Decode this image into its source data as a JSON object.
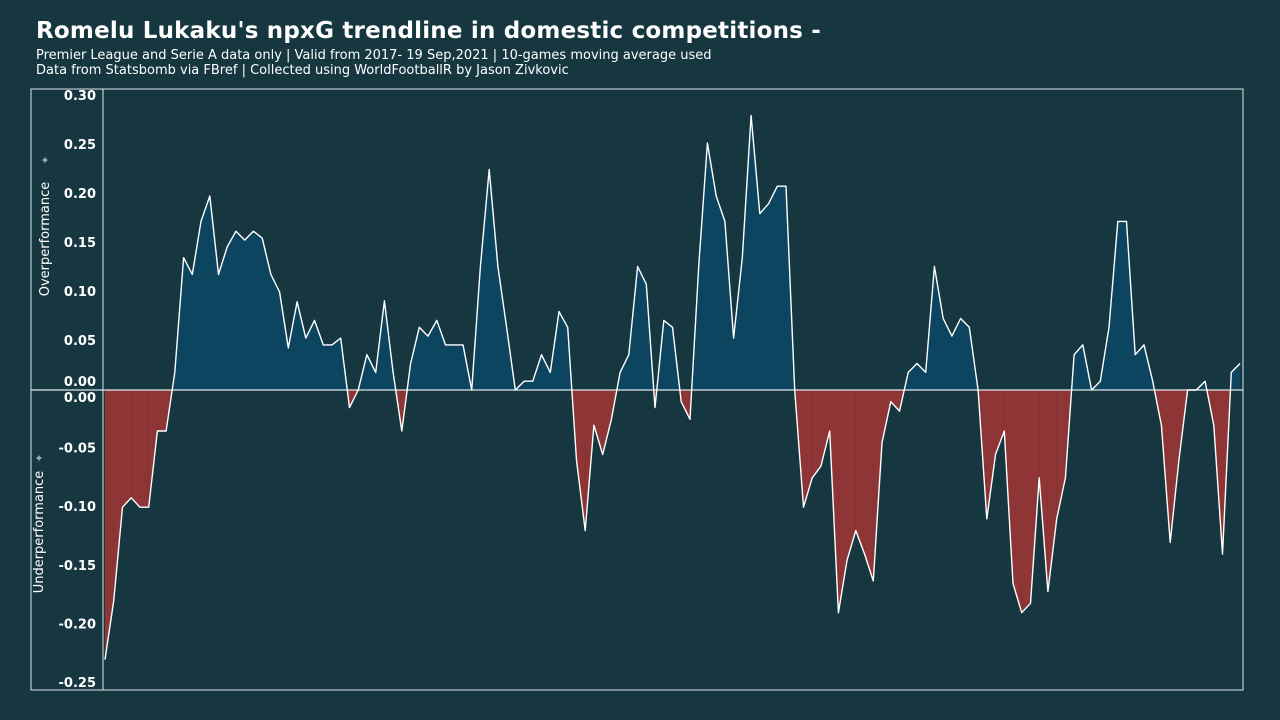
{
  "chart_data": {
    "type": "area",
    "title": "Romelu Lukaku's npxG trendline in domestic competitions -",
    "subtitle_lines": [
      "Premier League and Serie A data only | Valid from 2017- 19 Sep,2021 | 10-games moving average used",
      "Data from Statsbomb via FBref | Collected using WorldFootballR by Jason Zivkovic"
    ],
    "upper_label": "Overperformance",
    "lower_label": "Underperformance",
    "upper_ticks": [
      "0.30",
      "0.25",
      "0.20",
      "0.15",
      "0.10",
      "0.05",
      "0.00"
    ],
    "lower_ticks": [
      "0.00",
      "-0.05",
      "-0.10",
      "-0.15",
      "-0.20",
      "-0.25"
    ],
    "upper_ylim": [
      0,
      0.3
    ],
    "lower_ylim": [
      -0.25,
      0
    ],
    "colors": {
      "background": "#163640",
      "positive_fill": "#0c4560",
      "negative_fill": "#8f3535",
      "line": "#ffffff",
      "frame": "#dfe8ea"
    },
    "series": [
      {
        "values": [
          -0.23,
          -0.18,
          -0.1,
          -0.092,
          -0.1,
          -0.1,
          -0.035,
          -0.035,
          0.018,
          0.135,
          0.118,
          0.172,
          0.198,
          0.118,
          0.146,
          0.162,
          0.153,
          0.162,
          0.155,
          0.118,
          0.1,
          0.043,
          0.09,
          0.053,
          0.071,
          0.046,
          0.046,
          0.053,
          -0.015,
          0.0,
          0.036,
          0.018,
          0.091,
          0.018,
          -0.035,
          0.027,
          0.064,
          0.055,
          0.071,
          0.046,
          0.046,
          0.046,
          0.0,
          0.126,
          0.225,
          0.126,
          0.064,
          0.0,
          0.009,
          0.009,
          0.036,
          0.018,
          0.08,
          0.064,
          -0.06,
          -0.12,
          -0.03,
          -0.055,
          -0.025,
          0.018,
          0.036,
          0.126,
          0.108,
          -0.015,
          0.071,
          0.064,
          -0.01,
          -0.025,
          0.126,
          0.252,
          0.198,
          0.172,
          0.053,
          0.135,
          0.28,
          0.18,
          0.19,
          0.208,
          0.208,
          0.0,
          -0.1,
          -0.075,
          -0.065,
          -0.035,
          -0.19,
          -0.145,
          -0.12,
          -0.14,
          -0.163,
          -0.045,
          -0.01,
          -0.018,
          0.018,
          0.027,
          0.018,
          0.126,
          0.073,
          0.055,
          0.073,
          0.064,
          0.0,
          -0.11,
          -0.055,
          -0.035,
          -0.165,
          -0.19,
          -0.182,
          -0.075,
          -0.172,
          -0.11,
          -0.075,
          0.036,
          0.046,
          0.0,
          0.009,
          0.064,
          0.172,
          0.172,
          0.036,
          0.046,
          0.009,
          -0.03,
          -0.13,
          -0.06,
          0.0,
          0.0,
          0.009,
          -0.03,
          -0.14,
          0.018,
          0.027
        ]
      }
    ]
  }
}
